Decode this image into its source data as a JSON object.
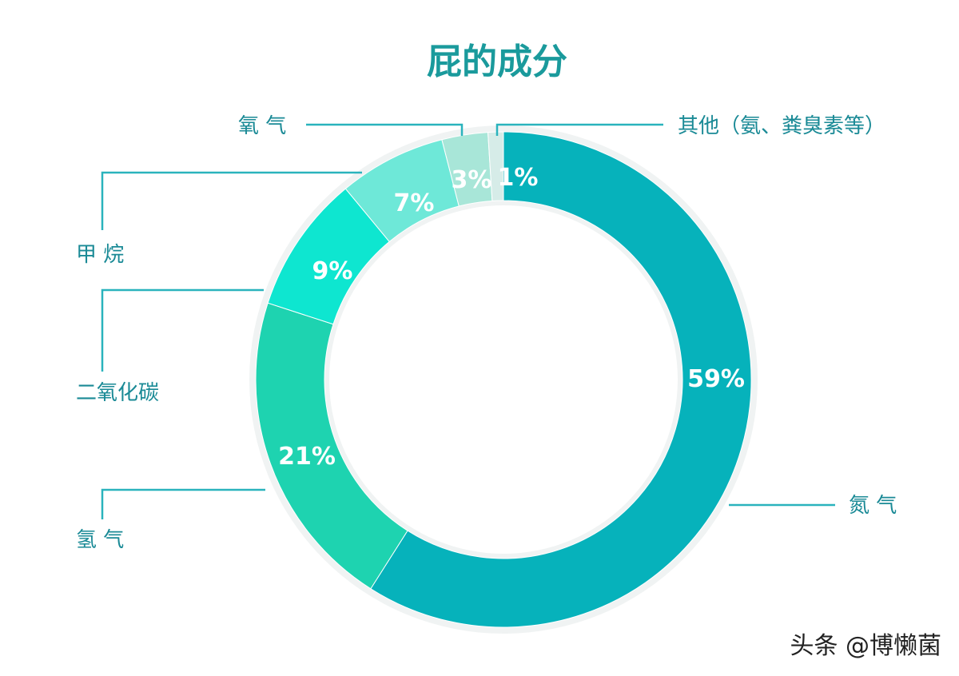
{
  "watermark": "头条 @博懒菌",
  "chart_data": {
    "type": "pie",
    "style": "donut",
    "title": "屁的成分",
    "slices": [
      {
        "name": "氮 气",
        "value": 59,
        "label": "59%",
        "color": "#06b2bb"
      },
      {
        "name": "氢 气",
        "value": 21,
        "label": "21%",
        "color": "#1ed3b0"
      },
      {
        "name": "二氧化碳",
        "value": 9,
        "label": "9%",
        "color": "#0ee6d0"
      },
      {
        "name": "甲 烷",
        "value": 7,
        "label": "7%",
        "color": "#6ee8d8"
      },
      {
        "name": "氧 气",
        "value": 3,
        "label": "3%",
        "color": "#a8e6d8"
      },
      {
        "name": "其他（氨、粪臭素等）",
        "value": 1,
        "label": "1%",
        "color": "#d6ece8"
      }
    ],
    "legend": "callouts"
  }
}
